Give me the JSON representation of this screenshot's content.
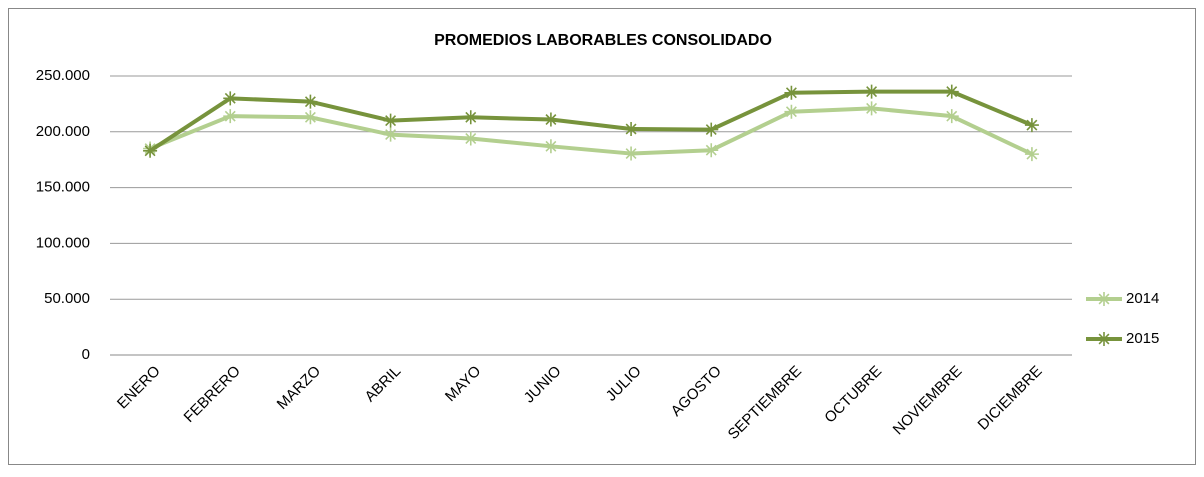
{
  "chart_data": {
    "type": "line",
    "title": "PROMEDIOS LABORABLES CONSOLIDADO",
    "categories": [
      "ENERO",
      "FEBRERO",
      "MARZO",
      "ABRIL",
      "MAYO",
      "JUNIO",
      "JULIO",
      "AGOSTO",
      "SEPTIEMBRE",
      "OCTUBRE",
      "NOVIEMBRE",
      "DICIEMBRE"
    ],
    "series": [
      {
        "name": "2014",
        "color": "#b3cf8f",
        "values": [
          185000,
          214000,
          213000,
          197500,
          194000,
          187000,
          180500,
          183500,
          218000,
          221000,
          214000,
          180000
        ]
      },
      {
        "name": "2015",
        "color": "#77933c",
        "values": [
          183000,
          230000,
          227000,
          210000,
          213000,
          211000,
          202500,
          202000,
          235000,
          236000,
          236000,
          206000
        ]
      }
    ],
    "ylim": [
      0,
      250000
    ],
    "yticks": [
      0,
      {
        "value": 50000,
        "label": "50.000"
      },
      {
        "value": 100000,
        "label": "100.000"
      },
      {
        "value": 150000,
        "label": "150.000"
      },
      {
        "value": 200000,
        "label": "200.000"
      },
      {
        "value": 250000,
        "label": "250.000"
      }
    ],
    "grid": true,
    "legend": "right"
  }
}
